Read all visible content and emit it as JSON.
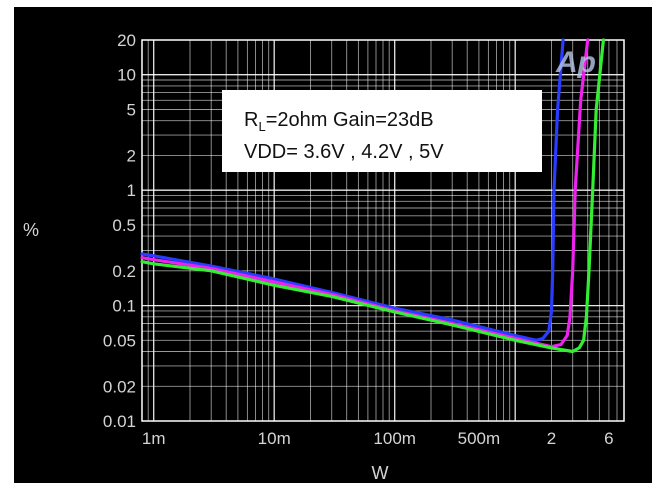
{
  "chart_data": {
    "type": "line",
    "title": "",
    "xlabel": "W",
    "ylabel": "%",
    "x_scale": "log",
    "y_scale": "log",
    "xlim": [
      0.0008,
      8
    ],
    "ylim": [
      0.01,
      20
    ],
    "grid": true,
    "x_ticks": [
      {
        "value": 0.001,
        "label": "1m"
      },
      {
        "value": 0.01,
        "label": "10m"
      },
      {
        "value": 0.1,
        "label": "100m"
      },
      {
        "value": 0.5,
        "label": "500m"
      },
      {
        "value": 2,
        "label": "2"
      },
      {
        "value": 6,
        "label": "6"
      }
    ],
    "y_ticks": [
      {
        "value": 0.01,
        "label": "0.01"
      },
      {
        "value": 0.02,
        "label": "0.02"
      },
      {
        "value": 0.05,
        "label": "0.05"
      },
      {
        "value": 0.1,
        "label": "0.1"
      },
      {
        "value": 0.2,
        "label": "0.2"
      },
      {
        "value": 0.5,
        "label": "0.5"
      },
      {
        "value": 1,
        "label": "1"
      },
      {
        "value": 2,
        "label": "2"
      },
      {
        "value": 5,
        "label": "5"
      },
      {
        "value": 10,
        "label": "10"
      },
      {
        "value": 20,
        "label": "20"
      }
    ],
    "annotation": {
      "line1_prefix": "R",
      "line1_sub": "L",
      "line1_rest": "=2ohm Gain=23dB",
      "line2": "VDD= 3.6V , 4.2V , 5V"
    },
    "logo": "Ap",
    "series": [
      {
        "color": "#2a3cff",
        "x": [
          0.0008,
          0.001,
          0.003,
          0.01,
          0.03,
          0.1,
          0.3,
          1.0,
          1.5,
          1.7,
          1.9,
          2.0,
          2.05,
          2.1,
          2.25,
          2.5
        ],
        "y": [
          0.28,
          0.27,
          0.22,
          0.17,
          0.13,
          0.095,
          0.075,
          0.055,
          0.05,
          0.052,
          0.06,
          0.09,
          0.2,
          1.0,
          5,
          20
        ]
      },
      {
        "color": "#ee22ee",
        "x": [
          0.0008,
          0.001,
          0.003,
          0.01,
          0.03,
          0.1,
          0.3,
          1.0,
          2.0,
          2.4,
          2.7,
          2.85,
          3.0,
          3.15,
          3.5,
          4.0
        ],
        "y": [
          0.26,
          0.25,
          0.21,
          0.16,
          0.125,
          0.09,
          0.07,
          0.052,
          0.044,
          0.046,
          0.055,
          0.08,
          0.2,
          1.0,
          6,
          20
        ]
      },
      {
        "color": "#33ee33",
        "x": [
          0.0008,
          0.001,
          0.003,
          0.01,
          0.03,
          0.1,
          0.3,
          1.0,
          2.0,
          3.0,
          3.4,
          3.7,
          3.9,
          4.1,
          4.4,
          4.7,
          5.4
        ],
        "y": [
          0.24,
          0.23,
          0.2,
          0.15,
          0.12,
          0.088,
          0.068,
          0.05,
          0.043,
          0.04,
          0.043,
          0.05,
          0.08,
          0.2,
          1.0,
          5,
          20
        ]
      }
    ]
  }
}
